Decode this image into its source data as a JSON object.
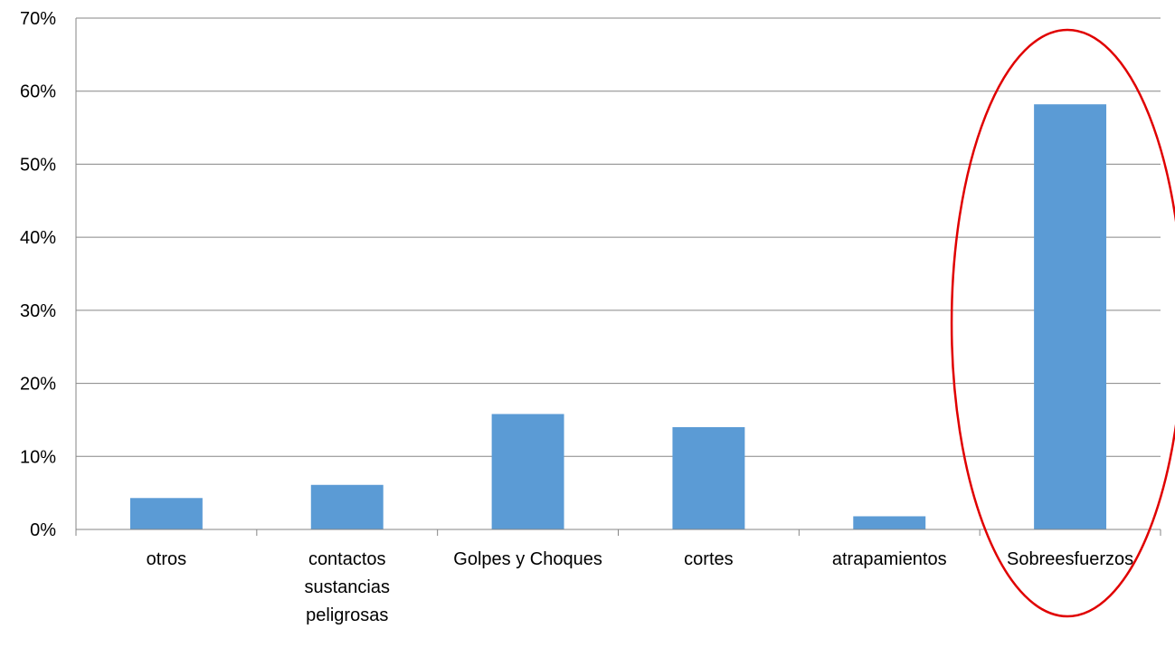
{
  "chart_data": {
    "type": "bar",
    "title": "",
    "xlabel": "",
    "ylabel": "",
    "categories": [
      [
        "otros"
      ],
      [
        "contactos",
        "sustancias",
        "peligrosas"
      ],
      [
        "Golpes y Choques"
      ],
      [
        "cortes"
      ],
      [
        "atrapamientos"
      ],
      [
        "Sobreesfuerzos"
      ]
    ],
    "values": [
      4.3,
      6.1,
      15.8,
      14.0,
      1.8,
      58.2
    ],
    "ylim": [
      0,
      70
    ],
    "yticks": [
      {
        "value": 0,
        "label": "0%"
      },
      {
        "value": 10,
        "label": "10%"
      },
      {
        "value": 20,
        "label": "20%"
      },
      {
        "value": 30,
        "label": "30%"
      },
      {
        "value": 40,
        "label": "40%"
      },
      {
        "value": 50,
        "label": "50%"
      },
      {
        "value": 60,
        "label": "60%"
      },
      {
        "value": 70,
        "label": "70%"
      }
    ],
    "grid": true,
    "legend": "none",
    "highlight_index": 5,
    "colors": {
      "bar": "#5b9bd5",
      "grid": "#868686",
      "axis": "#868686",
      "highlight": "#e00000"
    }
  }
}
